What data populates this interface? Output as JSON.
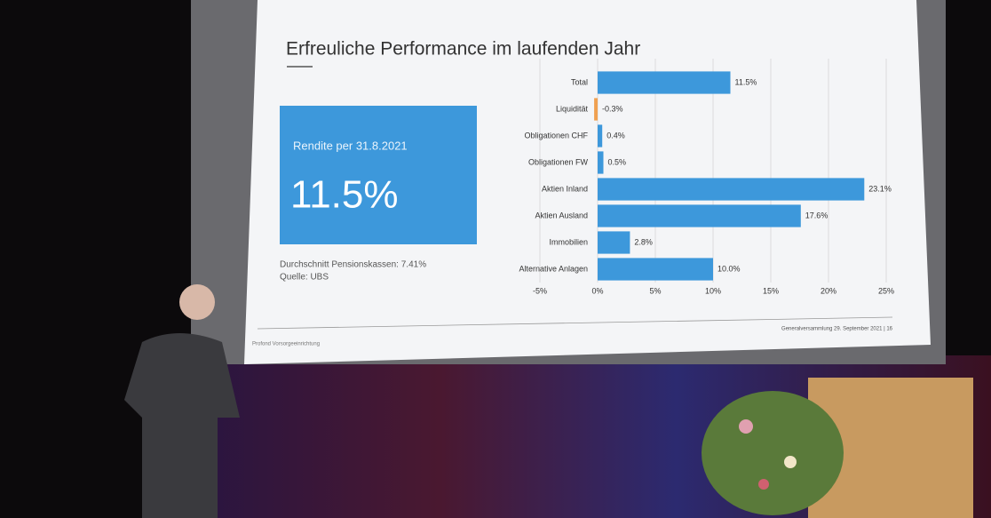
{
  "slide": {
    "title": "Erfreuliche Performance im laufenden Jahr",
    "kpi_label": "Rendite per 31.8.2021",
    "kpi_value": "11.5%",
    "note": "Durchschnitt Pensionskassen: 7.41%",
    "source": "Quelle: UBS",
    "footer_left": "Profond Vorsorgeeinrichtung",
    "footer_right": "Generalversammlung 29. September 2021 | 16"
  },
  "chart_data": {
    "type": "barh",
    "categories": [
      "Total",
      "Liquidität",
      "Obligationen CHF",
      "Obligationen FW",
      "Aktien Inland",
      "Aktien Ausland",
      "Immobilien",
      "Alternative Anlagen"
    ],
    "values": [
      11.5,
      -0.3,
      0.4,
      0.5,
      23.1,
      17.6,
      2.8,
      10.0
    ],
    "value_labels": [
      "11.5%",
      "-0.3%",
      "0.4%",
      "0.5%",
      "23.1%",
      "17.6%",
      "2.8%",
      "10.0%"
    ],
    "colors": [
      "#3d98db",
      "#f0a050",
      "#3d98db",
      "#3d98db",
      "#3d98db",
      "#3d98db",
      "#3d98db",
      "#3d98db"
    ],
    "xlim": [
      -5,
      25
    ],
    "xticks": [
      {
        "value": -5,
        "label": "-5%"
      },
      {
        "value": 0,
        "label": "0%"
      },
      {
        "value": 5,
        "label": "5%"
      },
      {
        "value": 10,
        "label": "10%"
      },
      {
        "value": 15,
        "label": "15%"
      },
      {
        "value": 20,
        "label": "20%"
      },
      {
        "value": 25,
        "label": "25%"
      }
    ],
    "grid": true
  }
}
